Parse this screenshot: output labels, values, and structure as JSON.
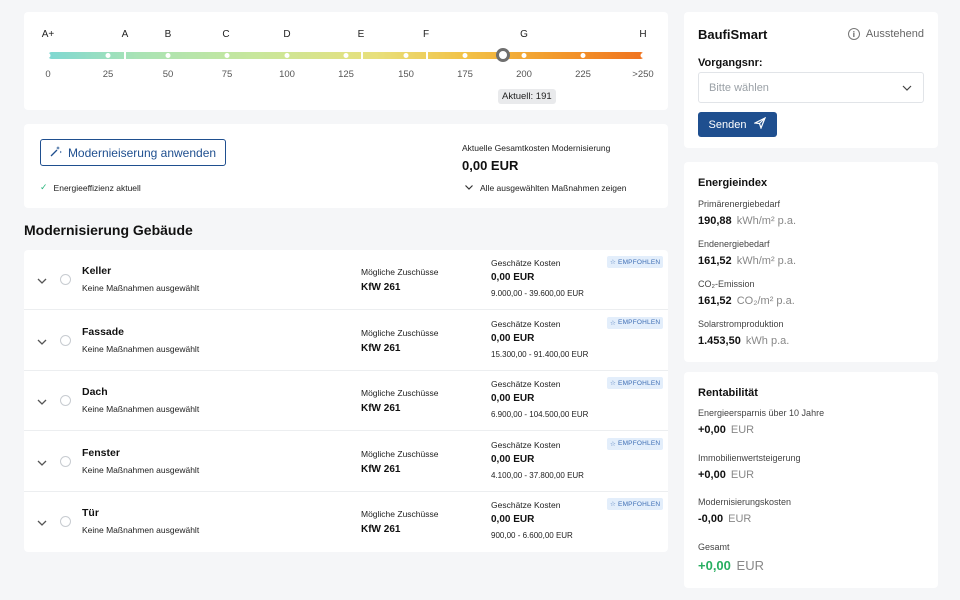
{
  "scale": {
    "letters": [
      "A+",
      "A",
      "B",
      "C",
      "D",
      "E",
      "F",
      "G",
      "H"
    ],
    "numbers": [
      "0",
      "25",
      "50",
      "75",
      "100",
      "125",
      "150",
      "175",
      "200",
      "225",
      ">250"
    ],
    "current_label": "Aktuell: 191",
    "current_value": 191
  },
  "action": {
    "apply_label": "Modernieiserung anwenden",
    "efficiency_label": "Energieeffizienz aktuell",
    "total_cost_label": "Aktuelle Gesamtkosten Modernisierung",
    "total_cost_value": "0,00 EUR",
    "show_all_label": "Alle ausgewählten Maßnahmen zeigen"
  },
  "section_title": "Modernisierung Gebäude",
  "rows": [
    {
      "title": "Keller",
      "sub": "Keine Maßnahmen ausgewählt",
      "grant_label": "Mögliche Zuschüsse",
      "grant": "KfW 261",
      "est_label": "Geschätze Kosten",
      "est": "0,00 EUR",
      "range": "9.000,00 - 39.600,00 EUR",
      "badge": "EMPFOHLEN"
    },
    {
      "title": "Fassade",
      "sub": "Keine Maßnahmen ausgewählt",
      "grant_label": "Mögliche Zuschüsse",
      "grant": "KfW 261",
      "est_label": "Geschätze Kosten",
      "est": "0,00 EUR",
      "range": "15.300,00 - 91.400,00 EUR",
      "badge": "EMPFOHLEN"
    },
    {
      "title": "Dach",
      "sub": "Keine Maßnahmen ausgewählt",
      "grant_label": "Mögliche Zuschüsse",
      "grant": "KfW 261",
      "est_label": "Geschätze Kosten",
      "est": "0,00 EUR",
      "range": "6.900,00 - 104.500,00 EUR",
      "badge": "EMPFOHLEN"
    },
    {
      "title": "Fenster",
      "sub": "Keine Maßnahmen ausgewählt",
      "grant_label": "Mögliche Zuschüsse",
      "grant": "KfW 261",
      "est_label": "Geschätze Kosten",
      "est": "0,00 EUR",
      "range": "4.100,00 - 37.800,00 EUR",
      "badge": "EMPFOHLEN"
    },
    {
      "title": "Tür",
      "sub": "Keine Maßnahmen ausgewählt",
      "grant_label": "Mögliche Zuschüsse",
      "grant": "KfW 261",
      "est_label": "Geschätze Kosten",
      "est": "0,00 EUR",
      "range": "900,00 - 6.600,00 EUR",
      "badge": "EMPFOHLEN"
    }
  ],
  "baufi": {
    "title": "BaufiSmart",
    "status": "Ausstehend",
    "field_label": "Vorgangsnr:",
    "placeholder": "Bitte wählen",
    "send_label": "Senden"
  },
  "energy": {
    "title": "Energieindex",
    "items": [
      {
        "label": "Primärenergiebedarf",
        "value": "190,88",
        "unit": "kWh/m² p.a."
      },
      {
        "label": "Endenergiebedarf",
        "value": "161,52",
        "unit": "kWh/m² p.a."
      },
      {
        "label": "CO₂-Emission",
        "value": "161,52",
        "unit": "CO₂/m² p.a."
      },
      {
        "label": "Solarstromproduktion",
        "value": "1.453,50",
        "unit": "kWh p.a."
      }
    ]
  },
  "rent": {
    "title": "Rentabilität",
    "items": [
      {
        "label": "Energieersparnis über 10 Jahre",
        "value": "+0,00",
        "unit": "EUR"
      },
      {
        "label": "Immobilienwertsteigerung",
        "value": "+0,00",
        "unit": "EUR"
      },
      {
        "label": "Modernisierungskosten",
        "value": "-0,00",
        "unit": "EUR"
      },
      {
        "label": "Gesamt",
        "value": "+0,00",
        "unit": "EUR"
      }
    ]
  },
  "colors": {
    "primary": "#1f4f8f",
    "success": "#27ae60",
    "badge_bg": "#e3eefb"
  }
}
